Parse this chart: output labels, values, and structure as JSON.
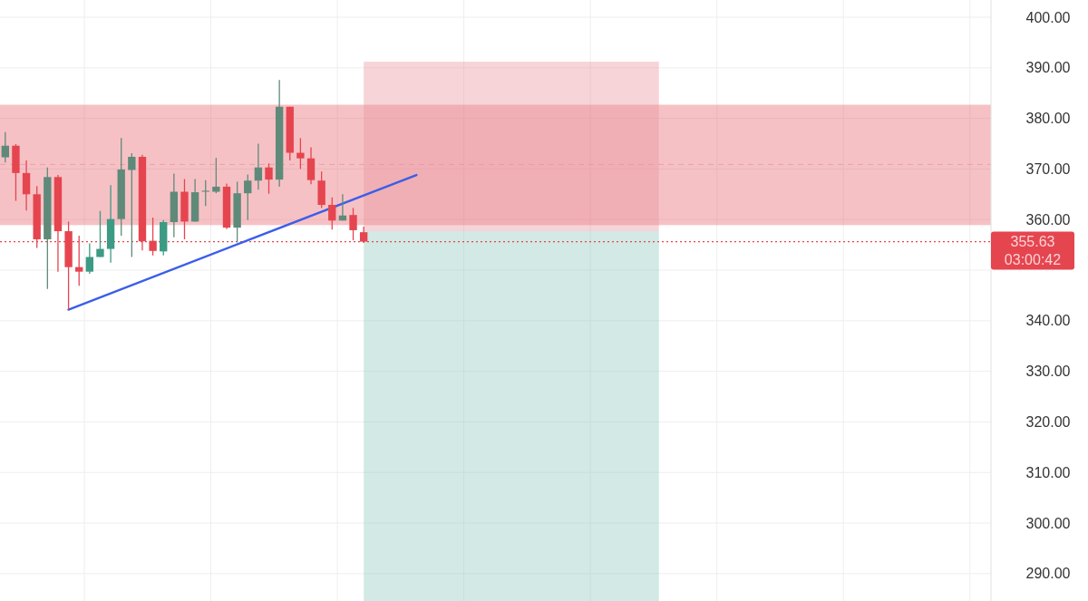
{
  "chart_data": {
    "type": "candlestick",
    "categories": [
      null,
      null,
      null,
      null,
      null,
      null,
      null,
      null,
      null,
      null,
      null,
      null,
      null,
      null,
      null,
      null,
      null,
      null,
      null,
      null,
      null,
      null,
      null,
      null,
      null,
      null,
      null,
      null,
      null,
      null,
      null,
      null,
      null,
      null,
      null,
      null,
      null,
      null,
      null,
      null,
      null,
      null,
      null,
      null,
      null,
      null,
      null,
      null,
      null,
      null,
      null,
      null,
      null,
      null,
      null,
      null,
      null,
      null,
      null,
      null,
      null,
      null,
      null,
      null,
      null,
      null,
      null,
      null,
      null,
      null,
      null,
      null,
      null,
      null,
      null,
      null,
      null,
      null,
      null,
      null,
      null,
      null,
      null,
      null,
      null,
      null,
      null,
      null,
      null,
      null,
      null,
      null,
      null,
      null
    ],
    "ohlc": [
      [
        372.3,
        377.3,
        371.3,
        374.6
      ],
      [
        374.6,
        374.9,
        363.7,
        369.2
      ],
      [
        369.2,
        371.7,
        361.8,
        365.0
      ],
      [
        365.0,
        366.6,
        354.4,
        356.1
      ],
      [
        356.1,
        370.3,
        346.3,
        368.4
      ],
      [
        368.4,
        368.8,
        349.7,
        357.7
      ],
      [
        357.7,
        359.6,
        342.2,
        350.6
      ],
      [
        350.6,
        356.8,
        346.9,
        349.7
      ],
      [
        349.7,
        355.3,
        349.3,
        352.6
      ],
      [
        352.6,
        361.7,
        352.6,
        354.2
      ],
      [
        354.2,
        366.8,
        351.5,
        360.1
      ],
      [
        360.1,
        376.1,
        356.8,
        369.9
      ],
      [
        369.8,
        373.1,
        352.6,
        372.4
      ],
      [
        372.4,
        372.8,
        353.9,
        355.7
      ],
      [
        355.8,
        360.4,
        352.9,
        353.8
      ],
      [
        353.7,
        359.9,
        352.9,
        359.5
      ],
      [
        359.5,
        369.1,
        356.5,
        365.5
      ],
      [
        365.5,
        368.0,
        356.1,
        359.6
      ],
      [
        359.6,
        368.0,
        359.6,
        365.4
      ],
      [
        365.5,
        367.8,
        362.7,
        365.7
      ],
      [
        365.5,
        372.2,
        365.2,
        366.5
      ],
      [
        366.5,
        367.1,
        358.1,
        358.4
      ],
      [
        358.4,
        367.5,
        355.5,
        365.2
      ],
      [
        365.2,
        368.9,
        359.9,
        367.7
      ],
      [
        367.7,
        375.0,
        365.9,
        370.3
      ],
      [
        370.3,
        371.1,
        365.1,
        367.9
      ],
      [
        367.9,
        387.6,
        366.5,
        382.3
      ],
      [
        382.3,
        382.3,
        371.7,
        373.2
      ],
      [
        373.2,
        376.1,
        370.0,
        372.1
      ],
      [
        372.1,
        374.3,
        367.0,
        367.8
      ],
      [
        367.7,
        369.5,
        362.3,
        362.9
      ],
      [
        362.9,
        364.4,
        358.0,
        359.8
      ],
      [
        359.8,
        365.0,
        359.8,
        360.8
      ],
      [
        360.9,
        362.3,
        355.9,
        357.9
      ],
      [
        357.5,
        358.6,
        355.4,
        355.63
      ],
      null,
      null,
      null,
      null,
      null,
      null,
      null,
      null,
      null,
      null,
      null,
      null,
      null,
      null,
      null,
      null,
      null,
      null,
      null,
      null,
      null,
      null,
      null,
      null,
      null,
      null,
      null,
      null,
      null,
      null,
      null,
      null,
      null,
      null,
      null,
      null,
      null,
      null,
      null,
      null,
      null,
      null,
      null,
      null,
      null,
      null,
      null,
      null,
      null,
      null,
      null,
      null,
      null,
      null,
      null,
      null,
      null,
      null,
      null
    ],
    "colors": [
      "#5f8a7a",
      "#e5454f",
      "#e5454f",
      "#e5454f",
      "#5f8a7a",
      "#e5454f",
      "#e5454f",
      "#e5454f",
      "#3d9a84",
      "#3d9a84",
      "#3d9a84",
      "#5f8a7a",
      "#5f8a7a",
      "#e5454f",
      "#e5454f",
      "#3d9a84",
      "#5f8a7a",
      "#e5454f",
      "#5f8a7a",
      "#5f8a7a",
      "#5f8a7a",
      "#e5454f",
      "#5f8a7a",
      "#5f8a7a",
      "#5f8a7a",
      "#e5454f",
      "#5f8a7a",
      "#e5454f",
      "#e5454f",
      "#e5454f",
      "#e5454f",
      "#e5454f",
      "#5f8a7a",
      "#e5454f",
      "#e5454f",
      null,
      null,
      null,
      null,
      null,
      null,
      null,
      null,
      null,
      null,
      null,
      null,
      null,
      null,
      null,
      null,
      null,
      null,
      null,
      null,
      null,
      null,
      null,
      null,
      null,
      null,
      null,
      null,
      null,
      null,
      null,
      null,
      null,
      null,
      null,
      null,
      null,
      null,
      null,
      null,
      null,
      null,
      null,
      null,
      null,
      null,
      null,
      null,
      null,
      null,
      null,
      null,
      null,
      null,
      null,
      null,
      null,
      null,
      null
    ],
    "series": [
      {
        "type": "line",
        "values": [
          null,
          null,
          null,
          null,
          null,
          null,
          342.2,
          null,
          null,
          null,
          null,
          null,
          null,
          null,
          null,
          null,
          null,
          null,
          null,
          null,
          null,
          null,
          null,
          null,
          null,
          null,
          null,
          null,
          null,
          null,
          null,
          null,
          null,
          null,
          null,
          null,
          null,
          null,
          null,
          368.8,
          null,
          null,
          null,
          null,
          null,
          null,
          null,
          null,
          null,
          null,
          null,
          null,
          null,
          null,
          null,
          null,
          null,
          null,
          null,
          null,
          null,
          null,
          null,
          null,
          null,
          null,
          null,
          null,
          null,
          null,
          null,
          null,
          null,
          null,
          null,
          null,
          null,
          null,
          null,
          null,
          null,
          null,
          null,
          null,
          null,
          null,
          null,
          null,
          null,
          null,
          null,
          null,
          null,
          null
        ],
        "color": "#3b5ee8"
      }
    ],
    "ylim": [
      284.6,
      403.4
    ],
    "yticks": [
      {
        "value": 290,
        "label": "290.00"
      },
      {
        "value": 300,
        "label": "300.00"
      },
      {
        "value": 310,
        "label": "310.00"
      },
      {
        "value": 320,
        "label": "320.00"
      },
      {
        "value": 330,
        "label": "330.00"
      },
      {
        "value": 340,
        "label": "340.00"
      },
      {
        "value": 350,
        "label": null
      },
      {
        "value": 360,
        "label": "360.00"
      },
      {
        "value": 370,
        "label": "370.00"
      },
      {
        "value": 380,
        "label": "380.00"
      },
      {
        "value": 390,
        "label": "390.00"
      },
      {
        "value": 400,
        "label": "400.00"
      }
    ],
    "grid": true,
    "bands": [
      {
        "axis": "y",
        "from": 358.9,
        "to": 382.7,
        "color": "#e8636f"
      },
      {
        "axis": "y",
        "from": 357.7,
        "to": 391.2,
        "color": "#e8939b"
      },
      {
        "axis": "y",
        "from": 284.6,
        "to": 357.7,
        "color": "#8fc9bd"
      }
    ],
    "ref_lines": [
      {
        "axis": "y",
        "value": 370.9,
        "color": "#e8939b",
        "line_style": "dashed"
      },
      {
        "axis": "y",
        "value": 355.63,
        "label": "355.63",
        "color": "#e5454f",
        "line_style": "dotted"
      }
    ],
    "annotations": [
      "03:00:42"
    ]
  }
}
